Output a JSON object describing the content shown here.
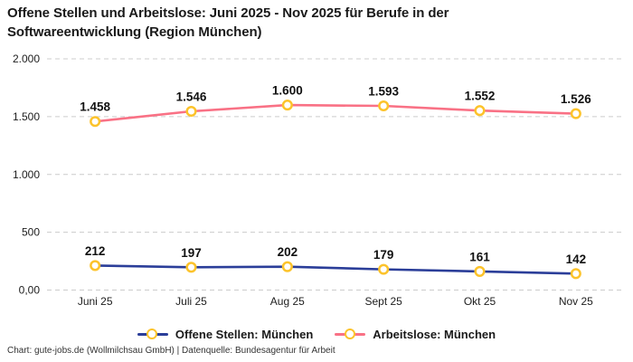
{
  "title": "Offene Stellen und Arbeitslose: Juni 2025 - Nov 2025 für Berufe in der Softwareentwicklung (Region München)",
  "footer": "Chart: gute-jobs.de (Wollmilchsau GmbH) | Datenquelle: Bundesagentur für Arbeit",
  "colors": {
    "marker_ring": "#fcc32b",
    "marker_fill": "#ffffff",
    "grid": "#cccccc",
    "text": "#1a1a1a",
    "series_open_positions": "#2b3e99",
    "series_unemployed": "#f97185"
  },
  "chart_data": {
    "type": "line",
    "title": "Offene Stellen und Arbeitslose: Juni 2025 - Nov 2025 für Berufe in der Softwareentwicklung (Region München)",
    "categories": [
      "Juni 25",
      "Juli 25",
      "Aug 25",
      "Sept 25",
      "Okt 25",
      "Nov 25"
    ],
    "series": [
      {
        "name": "Offene Stellen: München",
        "color": "#2b3e99",
        "values": [
          212,
          197,
          202,
          179,
          161,
          142
        ],
        "labels": [
          "212",
          "197",
          "202",
          "179",
          "161",
          "142"
        ]
      },
      {
        "name": "Arbeitslose: München",
        "color": "#f97185",
        "values": [
          1458,
          1546,
          1600,
          1593,
          1552,
          1526
        ],
        "labels": [
          "1.458",
          "1.546",
          "1.600",
          "1.593",
          "1.552",
          "1.526"
        ]
      }
    ],
    "y_axis": {
      "max": 2000,
      "min": 0,
      "ticks": [
        {
          "value": 2000,
          "label": "2.000"
        },
        {
          "value": 1500,
          "label": "1.500"
        },
        {
          "value": 1000,
          "label": "1.000"
        },
        {
          "value": 500,
          "label": "500"
        },
        {
          "value": 0,
          "label": "0,00"
        }
      ]
    },
    "grid": true,
    "grid_style": "dashed",
    "legend_position": "bottom",
    "marker": "open-circle"
  }
}
